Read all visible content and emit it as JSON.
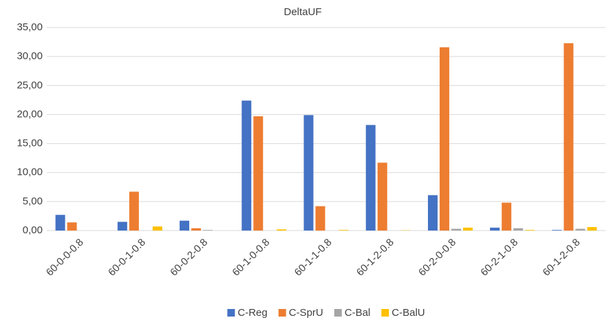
{
  "chart_data": {
    "type": "bar",
    "title": "DeltaUF",
    "categories": [
      "60-0-0-0.8",
      "60-0-1-0.8",
      "60-0-2-0.8",
      "60-1-0-0.8",
      "60-1-1-0.8",
      "60-1-2-0.8",
      "60-2-0-0.8",
      "60-2-1-0.8",
      "60-1-2-0.8"
    ],
    "series": [
      {
        "name": "C-Reg",
        "color": "#4472c4",
        "values": [
          2.7,
          1.5,
          1.7,
          22.4,
          19.9,
          18.2,
          6.1,
          0.5,
          0.1
        ]
      },
      {
        "name": "C-SprU",
        "color": "#ed7d31",
        "values": [
          1.4,
          6.7,
          0.4,
          19.7,
          4.2,
          11.7,
          31.6,
          4.8,
          32.3
        ]
      },
      {
        "name": "C-Bal",
        "color": "#a5a5a5",
        "values": [
          0,
          0,
          0.1,
          0,
          0,
          0,
          0.3,
          0.4,
          0.3
        ]
      },
      {
        "name": "C-BalU",
        "color": "#ffc000",
        "values": [
          0,
          0.7,
          0,
          0.2,
          0.1,
          0.05,
          0.5,
          0.1,
          0.6
        ]
      }
    ],
    "ylim": [
      0,
      35
    ],
    "yticks": [
      {
        "value": 0,
        "label": "0,00"
      },
      {
        "value": 5,
        "label": "5,00"
      },
      {
        "value": 10,
        "label": "10,00"
      },
      {
        "value": 15,
        "label": "15,00"
      },
      {
        "value": 20,
        "label": "20,00"
      },
      {
        "value": 25,
        "label": "25,00"
      },
      {
        "value": 30,
        "label": "30,00"
      },
      {
        "value": 35,
        "label": "35,00"
      }
    ],
    "grid": true,
    "legend": "bottom"
  }
}
